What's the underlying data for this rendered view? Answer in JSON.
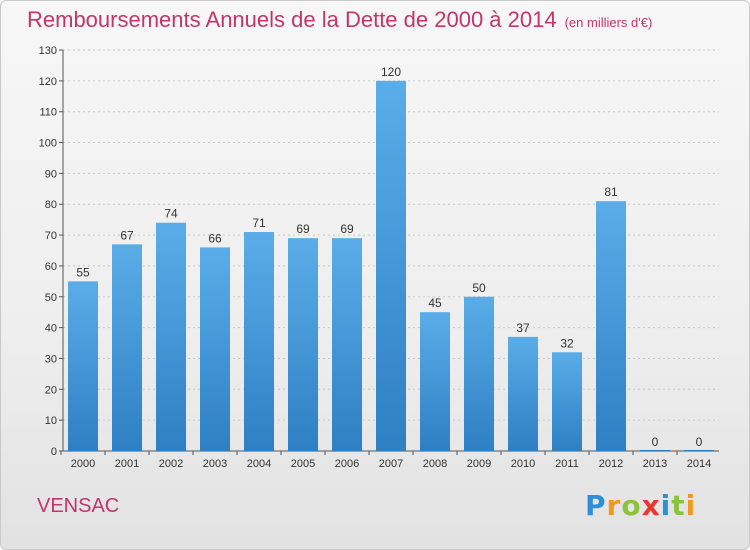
{
  "header": {
    "title": "Remboursements Annuels de la Dette de 2000 à 2014",
    "unit": "(en milliers d'€)"
  },
  "footer": {
    "commune": "VENSAC",
    "logo_letters": [
      "P",
      "r",
      "o",
      "x",
      "i",
      "t",
      "i"
    ],
    "logo_colors": [
      "#2e8fd8",
      "#f29a1d",
      "#8bc43c",
      "#e8372f",
      "#2e8fd8",
      "#8bc43c",
      "#f29a1d"
    ]
  },
  "chart_data": {
    "type": "bar",
    "categories": [
      "2000",
      "2001",
      "2002",
      "2003",
      "2004",
      "2005",
      "2006",
      "2007",
      "2008",
      "2009",
      "2010",
      "2011",
      "2012",
      "2013",
      "2014"
    ],
    "values": [
      55,
      67,
      74,
      66,
      71,
      69,
      69,
      120,
      45,
      50,
      37,
      32,
      81,
      0,
      0
    ],
    "ylim": [
      0,
      130
    ],
    "yticks": [
      0,
      10,
      20,
      30,
      40,
      50,
      60,
      70,
      80,
      90,
      100,
      110,
      120,
      130
    ],
    "grid": true,
    "bar_color_top": "#5aade8",
    "bar_color_bottom": "#2f7fc4"
  }
}
